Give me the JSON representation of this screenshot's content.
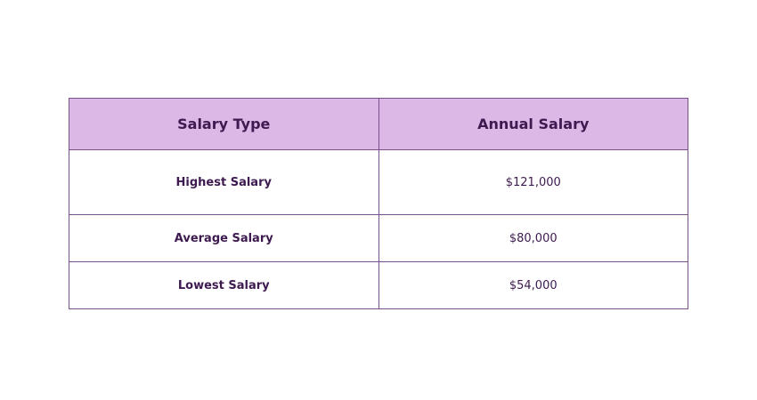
{
  "table": {
    "header": [
      "Salary Type",
      "Annual Salary"
    ],
    "rows": [
      [
        "Highest Salary",
        "$121,000"
      ],
      [
        "Average Salary",
        "$80,000"
      ],
      [
        "Lowest Salary",
        "$54,000"
      ]
    ]
  }
}
